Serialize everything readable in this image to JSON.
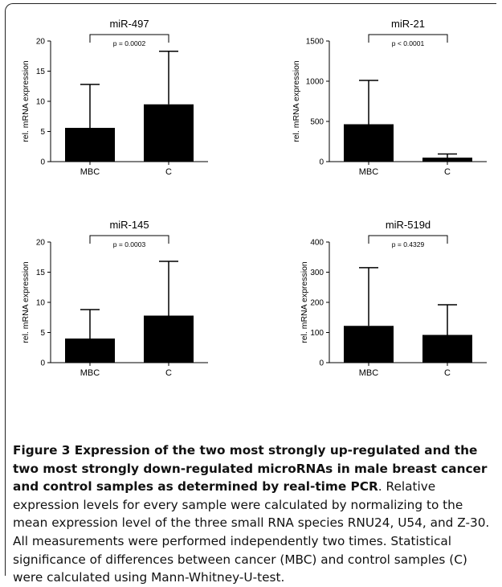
{
  "chart_data": [
    {
      "type": "bar",
      "title": "miR-497",
      "ylabel": "rel. mRNA expression",
      "categories": [
        "MBC",
        "C"
      ],
      "values": [
        5.6,
        9.5
      ],
      "error_upper": [
        12.8,
        18.3
      ],
      "ylim": [
        0,
        20
      ],
      "yticks": [
        0,
        5,
        10,
        15,
        20
      ],
      "pvalue": "p = 0.0002",
      "grid": false
    },
    {
      "type": "bar",
      "title": "miR-21",
      "ylabel": "rel. mRNA expression",
      "categories": [
        "MBC",
        "C"
      ],
      "values": [
        465,
        50
      ],
      "error_upper": [
        1010,
        95
      ],
      "ylim": [
        0,
        1500
      ],
      "yticks": [
        0,
        500,
        1000,
        1500
      ],
      "pvalue": "p < 0.0001",
      "grid": false
    },
    {
      "type": "bar",
      "title": "miR-145",
      "ylabel": "rel. mRNA expression",
      "categories": [
        "MBC",
        "C"
      ],
      "values": [
        4.0,
        7.8
      ],
      "error_upper": [
        8.8,
        16.8
      ],
      "ylim": [
        0,
        20
      ],
      "yticks": [
        0,
        5,
        10,
        15,
        20
      ],
      "pvalue": "p = 0.0003",
      "grid": false
    },
    {
      "type": "bar",
      "title": "miR-519d",
      "ylabel": "rel. mRNA expression",
      "categories": [
        "MBC",
        "C"
      ],
      "values": [
        122,
        92
      ],
      "error_upper": [
        315,
        192
      ],
      "ylim": [
        0,
        400
      ],
      "yticks": [
        0,
        100,
        200,
        300,
        400
      ],
      "pvalue": "p = 0.4329",
      "grid": false
    }
  ],
  "caption": {
    "bold": "Figure 3 Expression of the two most strongly up-regulated and the two most strongly down-regulated microRNAs in male breast cancer and control samples as determined by real-time PCR",
    "text": ". Relative expression levels for every sample were calculated by normalizing to the mean expression level of the three small RNA species RNU24, U54, and Z-30. All measurements were performed independently two times. Statistical significance of differences between cancer (MBC) and control samples (C) were calculated using Mann-Whitney-U-test."
  },
  "colors": {
    "bar": "#000000",
    "text": "#000000"
  }
}
